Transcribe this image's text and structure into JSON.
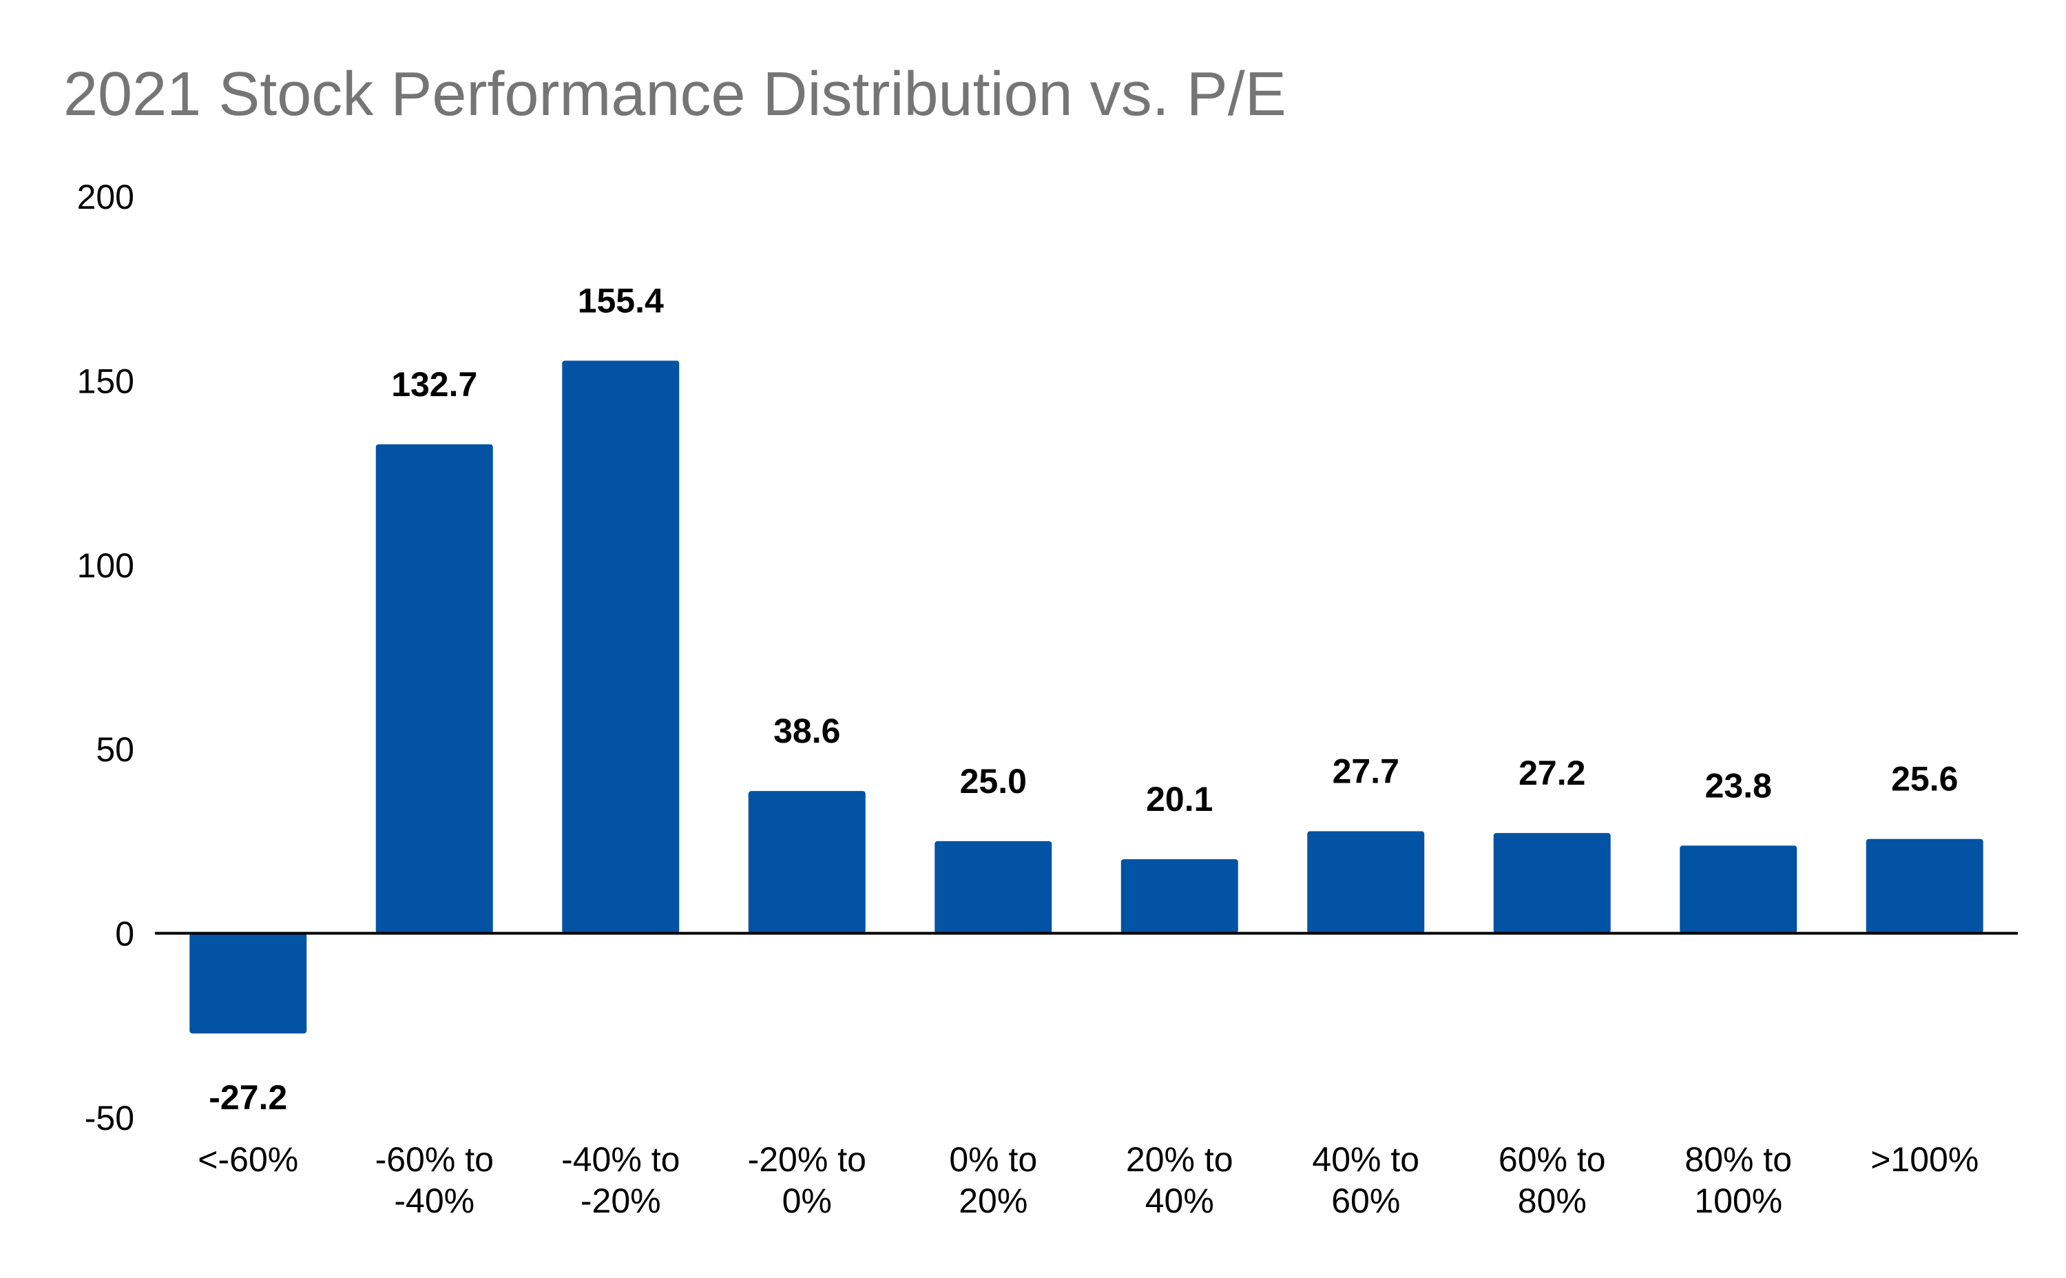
{
  "chart_data": {
    "type": "bar",
    "title": "2021 Stock Performance Distribution vs. P/E",
    "xlabel": "",
    "ylabel": "",
    "categories": [
      [
        "<-60%"
      ],
      [
        "-60% to",
        "-40%"
      ],
      [
        "-40% to",
        "-20%"
      ],
      [
        "-20% to",
        "0%"
      ],
      [
        "0% to",
        "20%"
      ],
      [
        "20% to",
        "40%"
      ],
      [
        "40% to",
        "60%"
      ],
      [
        "60% to",
        "80%"
      ],
      [
        "80% to",
        "100%"
      ],
      [
        ">100%"
      ]
    ],
    "values": [
      -27.2,
      132.7,
      155.4,
      38.6,
      25.0,
      20.1,
      27.7,
      27.2,
      23.8,
      25.6
    ],
    "data_labels": [
      "-27.2",
      "132.7",
      "155.4",
      "38.6",
      "25.0",
      "20.1",
      "27.7",
      "27.2",
      "23.8",
      "25.6"
    ],
    "ylim": [
      -50,
      200
    ],
    "yticks": [
      -50,
      0,
      50,
      100,
      150,
      200
    ],
    "grid": false,
    "legend": "none",
    "bar_color": "#0353a4",
    "title_color": "#757575"
  }
}
